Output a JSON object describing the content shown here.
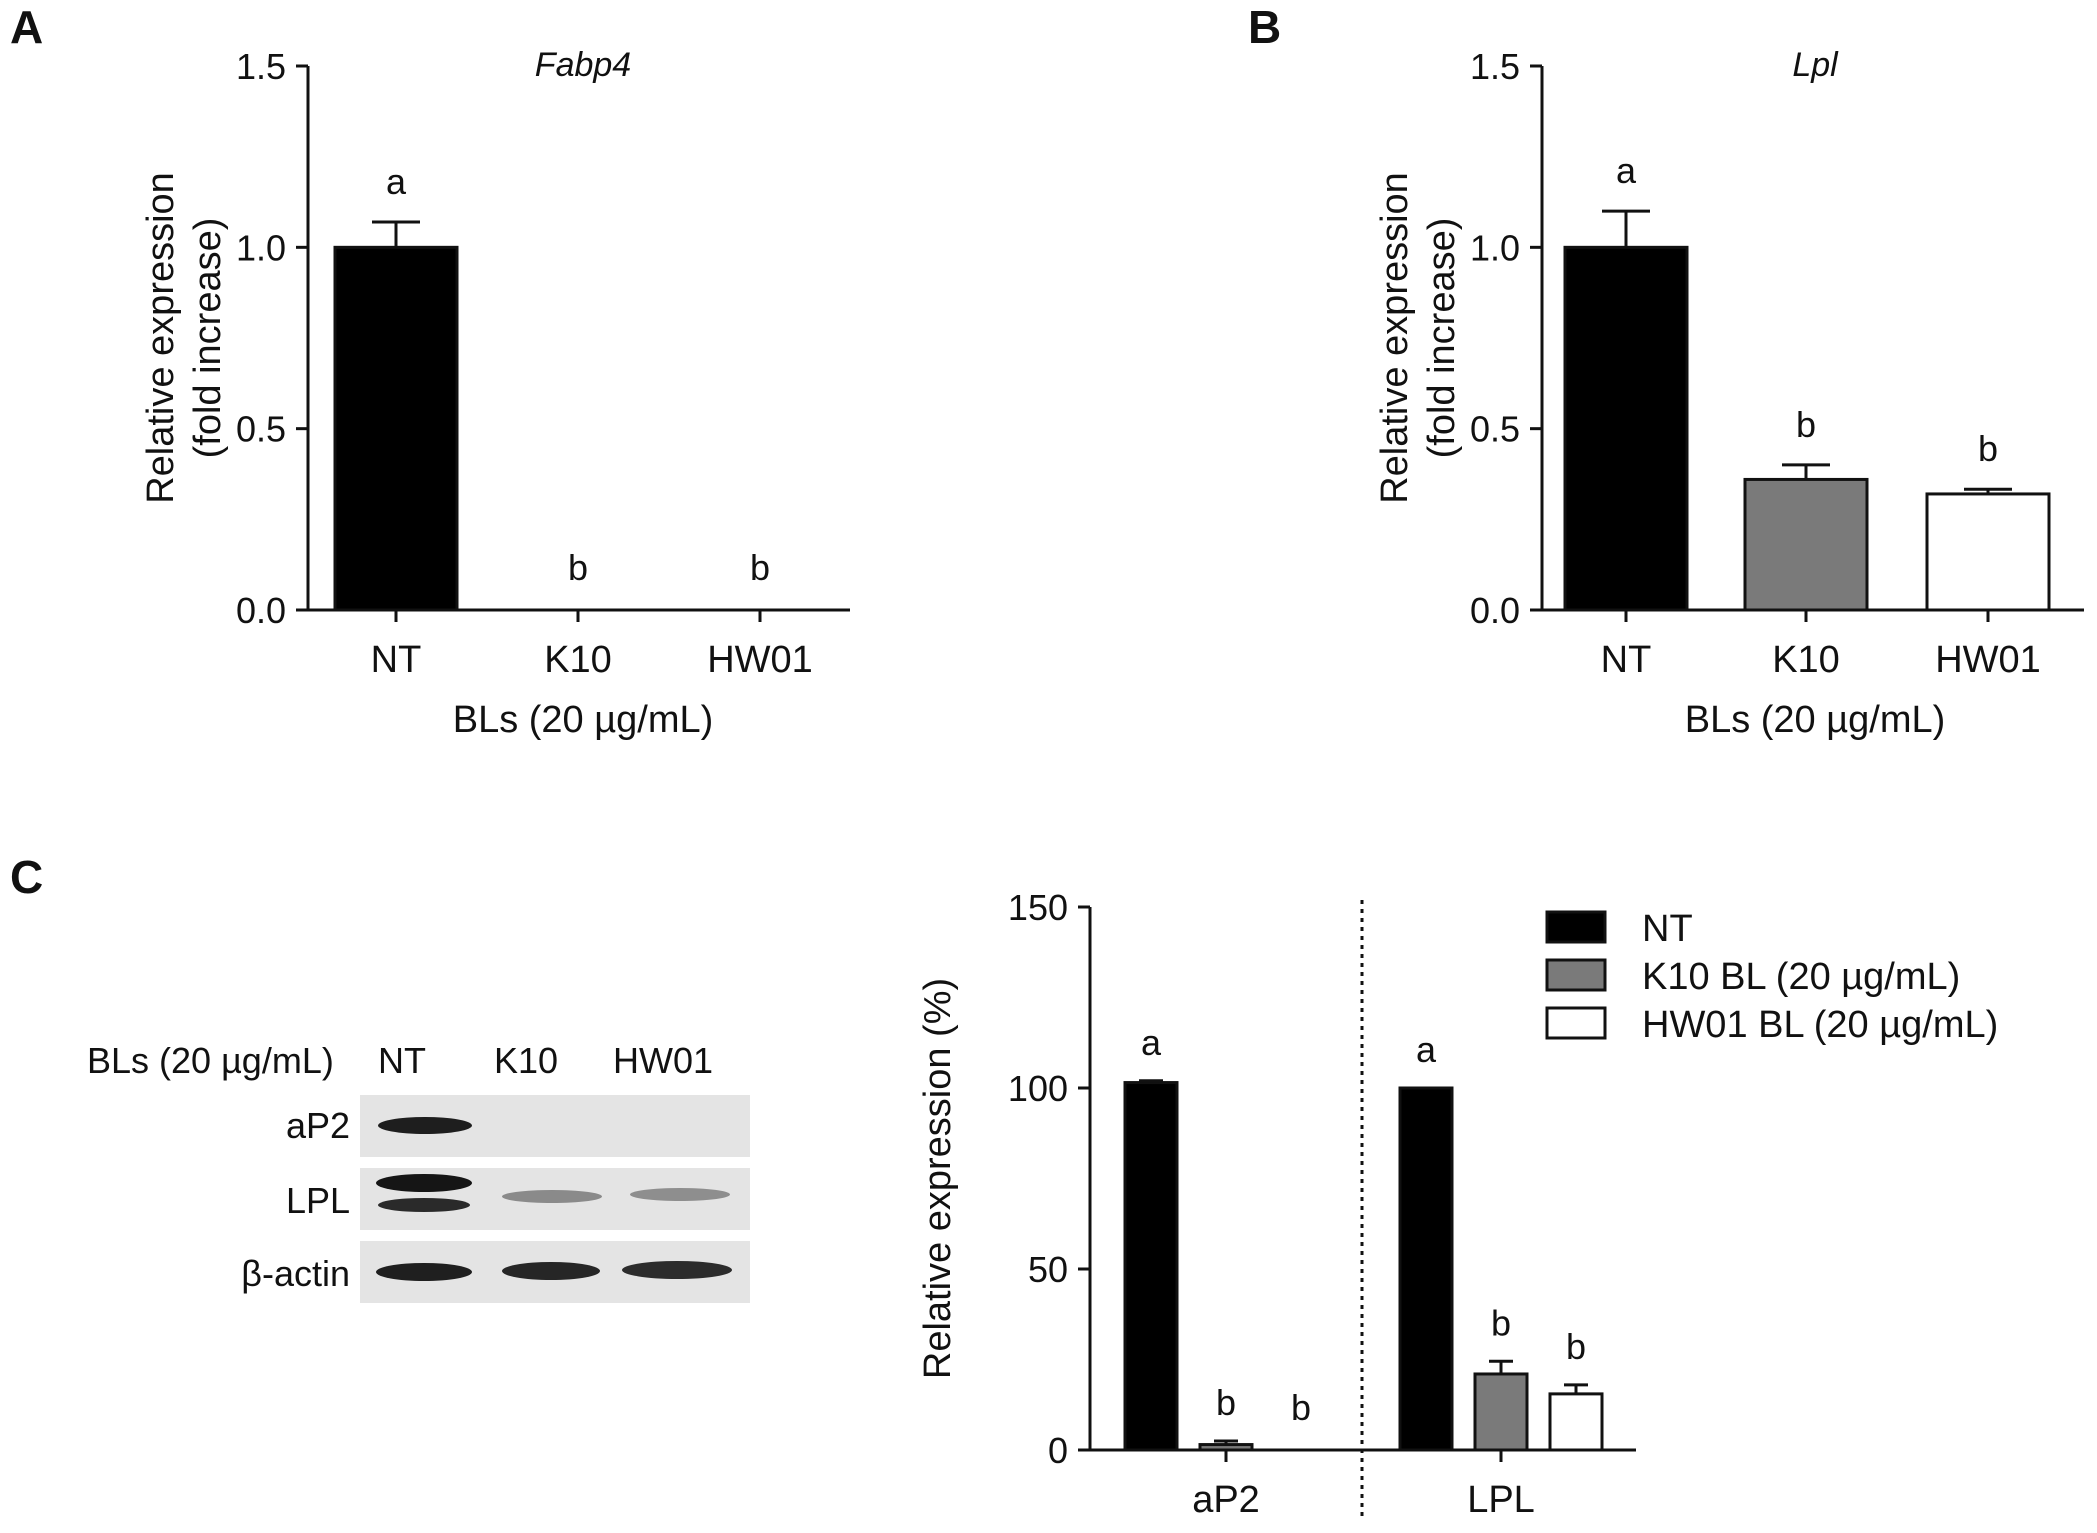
{
  "panels": {
    "a": "A",
    "b": "B",
    "c": "C"
  },
  "chart_data": [
    {
      "id": "A",
      "type": "bar",
      "title": "Fabp4",
      "ylabel_line1": "Relative expression",
      "ylabel_line2": "(fold increase)",
      "xlabel": "BLs (20 µg/mL)",
      "categories": [
        "NT",
        "K10",
        "HW01"
      ],
      "values": [
        1.0,
        0.0,
        0.0
      ],
      "errors": [
        0.07,
        0,
        0
      ],
      "significance": [
        "a",
        "b",
        "b"
      ],
      "bar_colors": [
        "#000000",
        "#7a7a7a",
        "#ffffff"
      ],
      "ylim": [
        0,
        1.5
      ],
      "yticks": [
        "0.0",
        "0.5",
        "1.0",
        "1.5"
      ]
    },
    {
      "id": "B",
      "type": "bar",
      "title": "Lpl",
      "ylabel_line1": "Relative expression",
      "ylabel_line2": "(fold increase)",
      "xlabel": "BLs (20 µg/mL)",
      "categories": [
        "NT",
        "K10",
        "HW01"
      ],
      "values": [
        1.0,
        0.36,
        0.32
      ],
      "errors": [
        0.1,
        0.04,
        0.013
      ],
      "significance": [
        "a",
        "b",
        "b"
      ],
      "bar_colors": [
        "#000000",
        "#7a7a7a",
        "#ffffff"
      ],
      "ylim": [
        0,
        1.5
      ],
      "yticks": [
        "0.0",
        "0.5",
        "1.0",
        "1.5"
      ]
    },
    {
      "id": "C",
      "type": "bar",
      "ylabel": "Relative expression (%)",
      "groups": [
        "aP2",
        "LPL"
      ],
      "series": [
        {
          "name": "NT",
          "color": "#000000",
          "values": [
            101.5,
            100
          ],
          "errors": [
            0.5,
            0
          ],
          "significance": [
            "a",
            "a"
          ]
        },
        {
          "name": "K10 BL (20 µg/mL)",
          "color": "#7a7a7a",
          "values": [
            1.5,
            21
          ],
          "errors": [
            1.0,
            3.5
          ],
          "significance": [
            "b",
            "b"
          ]
        },
        {
          "name": "HW01 BL (20 µg/mL)",
          "color": "#ffffff",
          "values": [
            0,
            15.5
          ],
          "errors": [
            0,
            2.5
          ],
          "significance": [
            "b",
            "b"
          ]
        }
      ],
      "ylim": [
        0,
        150
      ],
      "yticks": [
        "0",
        "50",
        "100",
        "150"
      ]
    }
  ],
  "western_blot": {
    "header_label": "BLs (20 µg/mL)",
    "lanes": [
      "NT",
      "K10",
      "HW01"
    ],
    "rows": [
      "aP2",
      "LPL",
      "β-actin"
    ]
  }
}
